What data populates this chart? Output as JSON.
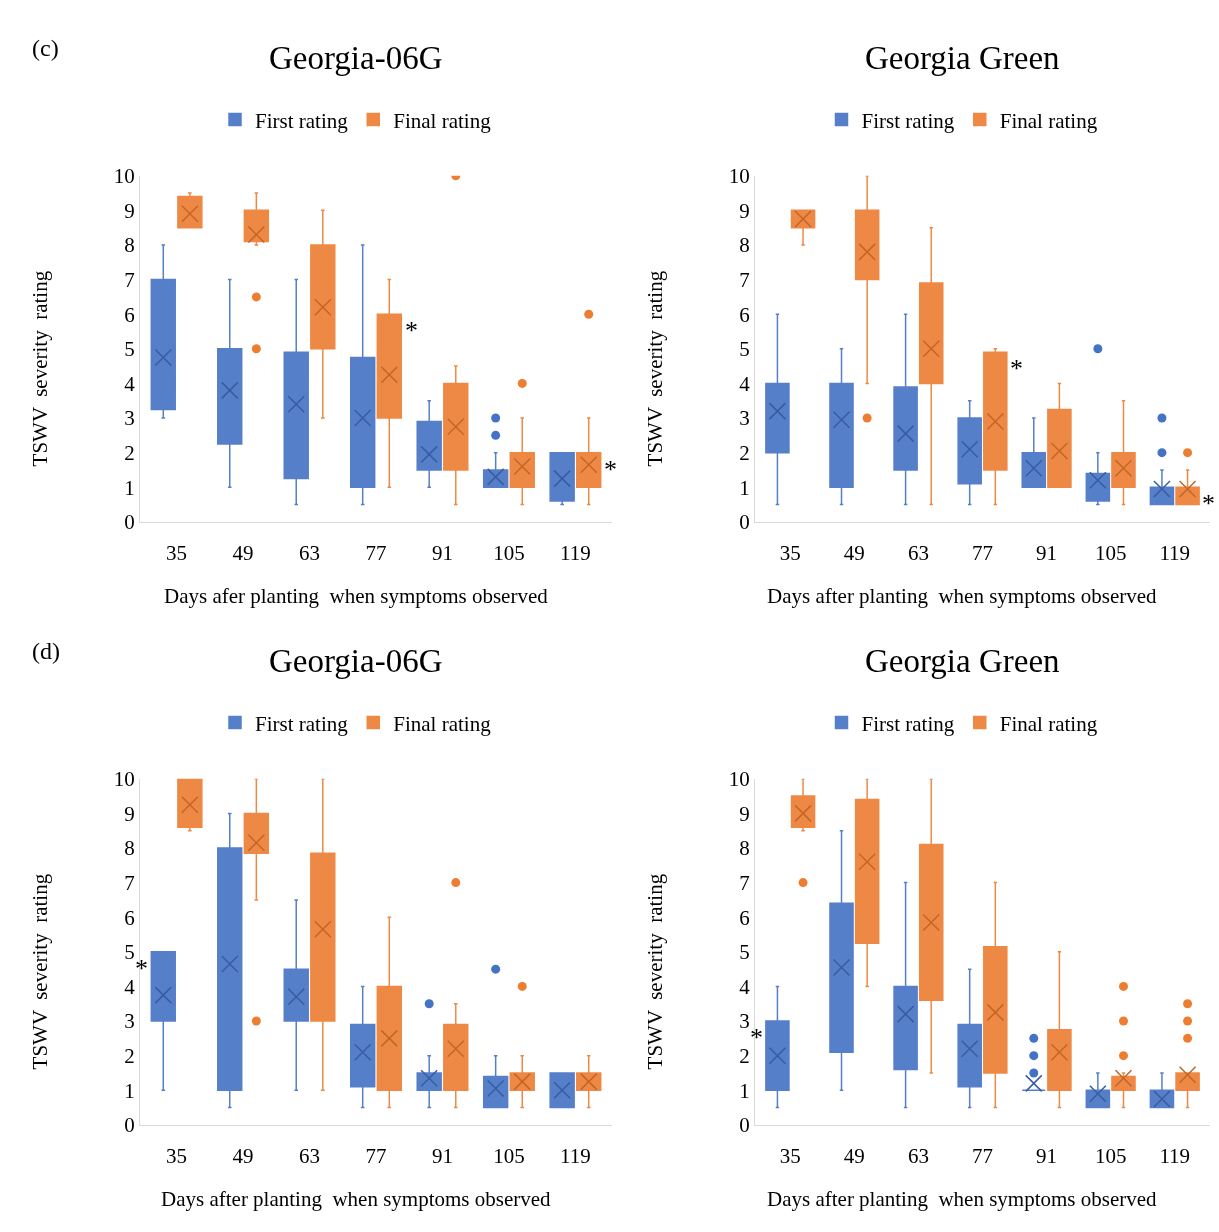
{
  "chart_data": [
    {
      "type": "box",
      "title": "Georgia-06G",
      "xlabel": "Days afer planting  when symptoms observed",
      "ylabel": "TSWV  severity  rating",
      "categories": [
        "35",
        "49",
        "63",
        "77",
        "91",
        "105",
        "119"
      ],
      "ylim": [
        0,
        10
      ],
      "yticks": [
        0,
        1,
        2,
        3,
        4,
        5,
        6,
        7,
        8,
        9,
        10
      ],
      "grid": false,
      "legend": "top",
      "marker": "circle",
      "annotations": [
        "(c)",
        {
          "text": "*",
          "x": "77",
          "y": 6
        },
        {
          "text": "*",
          "x": "119",
          "y": 2
        }
      ],
      "series": [
        {
          "name": "First rating",
          "color": "#4472c4",
          "boxes": [
            {
              "low": 3,
              "q1": 3.25,
              "median": 4,
              "q3": 7,
              "high": 8,
              "mean": 4.75
            },
            {
              "low": 1,
              "q1": 2.25,
              "median": 4,
              "q3": 5,
              "high": 7,
              "mean": 3.8
            },
            {
              "low": 0.5,
              "q1": 1.25,
              "median": 4,
              "q3": 4.9,
              "high": 7,
              "mean": 3.4
            },
            {
              "low": 0.5,
              "q1": 1,
              "median": 2.25,
              "q3": 4.75,
              "high": 8,
              "mean": 3.0
            },
            {
              "low": 1,
              "q1": 1.5,
              "median": 1.75,
              "q3": 2.9,
              "high": 3.5,
              "mean": 1.95
            },
            {
              "low": 1,
              "q1": 1,
              "median": 1,
              "q3": 1.5,
              "high": 2,
              "mean": 1.3,
              "outliers": [
                2.5,
                3
              ]
            },
            {
              "low": 0.5,
              "q1": 0.6,
              "median": 1,
              "q3": 2,
              "high": 2,
              "mean": 1.25
            }
          ]
        },
        {
          "name": "Final rating",
          "color": "#ed7d31",
          "boxes": [
            {
              "low": 8.5,
              "q1": 8.5,
              "median": 8.75,
              "q3": 9.4,
              "high": 9.5,
              "mean": 8.9
            },
            {
              "low": 8,
              "q1": 8.1,
              "median": 8.1,
              "q3": 9,
              "high": 9.5,
              "mean": 8.3,
              "outliers": [
                5,
                6.5
              ]
            },
            {
              "low": 3,
              "q1": 5,
              "median": 6,
              "q3": 8,
              "high": 9,
              "mean": 6.2
            },
            {
              "low": 1,
              "q1": 3,
              "median": 4,
              "q3": 6,
              "high": 7,
              "mean": 4.25
            },
            {
              "low": 0.5,
              "q1": 1.5,
              "median": 2.25,
              "q3": 4,
              "high": 4.5,
              "mean": 2.75,
              "outliers": [
                10
              ]
            },
            {
              "low": 0.5,
              "q1": 1,
              "median": 1.5,
              "q3": 2,
              "high": 3,
              "mean": 1.6,
              "outliers": [
                4
              ]
            },
            {
              "low": 0.5,
              "q1": 1,
              "median": 1.5,
              "q3": 2,
              "high": 3,
              "mean": 1.65,
              "outliers": [
                6
              ]
            }
          ]
        }
      ]
    },
    {
      "type": "box",
      "title": "Georgia Green",
      "xlabel": "Days after planting  when symptoms observed",
      "ylabel": "TSWV  severity  rating",
      "categories": [
        "35",
        "49",
        "63",
        "77",
        "91",
        "105",
        "119"
      ],
      "ylim": [
        0,
        10
      ],
      "yticks": [
        0,
        1,
        2,
        3,
        4,
        5,
        6,
        7,
        8,
        9,
        10
      ],
      "grid": false,
      "legend": "top",
      "marker": "circle",
      "annotations": [
        {
          "text": "*",
          "x": "77",
          "y": 4.9
        },
        {
          "text": "*",
          "x": "119",
          "y": 1
        }
      ],
      "series": [
        {
          "name": "First rating",
          "color": "#4472c4",
          "boxes": [
            {
              "low": 0.5,
              "q1": 2,
              "median": 3,
              "q3": 4,
              "high": 6,
              "mean": 3.2
            },
            {
              "low": 0.5,
              "q1": 1,
              "median": 3,
              "q3": 4,
              "high": 5,
              "mean": 2.95
            },
            {
              "low": 0.5,
              "q1": 1.5,
              "median": 2.25,
              "q3": 3.9,
              "high": 6,
              "mean": 2.55
            },
            {
              "low": 0.5,
              "q1": 1.1,
              "median": 2,
              "q3": 3,
              "high": 3.5,
              "mean": 2.1
            },
            {
              "low": 1,
              "q1": 1,
              "median": 1.5,
              "q3": 2,
              "high": 3,
              "mean": 1.55
            },
            {
              "low": 0.5,
              "q1": 0.6,
              "median": 1,
              "q3": 1.4,
              "high": 2,
              "mean": 1.2,
              "outliers": [
                5
              ]
            },
            {
              "low": 0.5,
              "q1": 0.5,
              "median": 0.75,
              "q3": 1,
              "high": 1.5,
              "mean": 0.95,
              "outliers": [
                2,
                3
              ]
            }
          ]
        },
        {
          "name": "Final rating",
          "color": "#ed7d31",
          "boxes": [
            {
              "low": 8,
              "q1": 8.5,
              "median": 8.75,
              "q3": 9,
              "high": 9,
              "mean": 8.75
            },
            {
              "low": 4,
              "q1": 7,
              "median": 8.5,
              "q3": 9,
              "high": 10,
              "mean": 7.8,
              "outliers": [
                3
              ]
            },
            {
              "low": 0.5,
              "q1": 4,
              "median": 5,
              "q3": 6.9,
              "high": 8.5,
              "mean": 5
            },
            {
              "low": 0.5,
              "q1": 1.5,
              "median": 2.5,
              "q3": 4.9,
              "high": 5,
              "mean": 2.9
            },
            {
              "low": 1,
              "q1": 1,
              "median": 1.5,
              "q3": 3.25,
              "high": 4,
              "mean": 2.05
            },
            {
              "low": 0.5,
              "q1": 1,
              "median": 1.25,
              "q3": 2,
              "high": 3.5,
              "mean": 1.55
            },
            {
              "low": 0.5,
              "q1": 0.5,
              "median": 0.75,
              "q3": 1,
              "high": 1.5,
              "mean": 0.95,
              "outliers": [
                2
              ]
            }
          ]
        }
      ]
    },
    {
      "type": "box",
      "title": "Georgia-06G",
      "xlabel": "Days after planting  when symptoms observed",
      "ylabel": "TSWV  severity  rating",
      "categories": [
        "35",
        "49",
        "63",
        "77",
        "91",
        "105",
        "119"
      ],
      "ylim": [
        0,
        10
      ],
      "yticks": [
        0,
        1,
        2,
        3,
        4,
        5,
        6,
        7,
        8,
        9,
        10
      ],
      "grid": false,
      "legend": "top",
      "marker": "circle",
      "annotations": [
        "(d)",
        {
          "text": "*",
          "x": "35",
          "y": 5
        }
      ],
      "series": [
        {
          "name": "First rating",
          "color": "#4472c4",
          "boxes": [
            {
              "low": 1,
              "q1": 3,
              "median": 4,
              "q3": 5,
              "high": 5,
              "mean": 3.75
            },
            {
              "low": 0.5,
              "q1": 1,
              "median": 5,
              "q3": 8,
              "high": 9,
              "mean": 4.65
            },
            {
              "low": 1,
              "q1": 3,
              "median": 3.5,
              "q3": 4.5,
              "high": 6.5,
              "mean": 3.7
            },
            {
              "low": 0.5,
              "q1": 1.1,
              "median": 2,
              "q3": 2.9,
              "high": 4,
              "mean": 2.1
            },
            {
              "low": 0.5,
              "q1": 1,
              "median": 1.25,
              "q3": 1.5,
              "high": 2,
              "mean": 1.35,
              "outliers": [
                3.5
              ]
            },
            {
              "low": 0.5,
              "q1": 0.5,
              "median": 1,
              "q3": 1.4,
              "high": 2,
              "mean": 1.05,
              "outliers": [
                4.5
              ]
            },
            {
              "low": 0.5,
              "q1": 0.5,
              "median": 1,
              "q3": 1.5,
              "high": 1.5,
              "mean": 1.0
            }
          ]
        },
        {
          "name": "Final rating",
          "color": "#ed7d31",
          "boxes": [
            {
              "low": 8.5,
              "q1": 8.6,
              "median": 9,
              "q3": 10,
              "high": 10,
              "mean": 9.25
            },
            {
              "low": 6.5,
              "q1": 7.85,
              "median": 8.75,
              "q3": 9,
              "high": 10,
              "mean": 8.15,
              "outliers": [
                3
              ]
            },
            {
              "low": 1,
              "q1": 3,
              "median": 5.7,
              "q3": 7.85,
              "high": 10,
              "mean": 5.65
            },
            {
              "low": 0.5,
              "q1": 1,
              "median": 2,
              "q3": 4,
              "high": 6,
              "mean": 2.5
            },
            {
              "low": 0.5,
              "q1": 1,
              "median": 1.75,
              "q3": 2.9,
              "high": 3.5,
              "mean": 2.2,
              "outliers": [
                7
              ]
            },
            {
              "low": 0.5,
              "q1": 1,
              "median": 1.25,
              "q3": 1.5,
              "high": 2,
              "mean": 1.25,
              "outliers": [
                4
              ]
            },
            {
              "low": 0.5,
              "q1": 1,
              "median": 1.25,
              "q3": 1.5,
              "high": 2,
              "mean": 1.25
            }
          ]
        }
      ]
    },
    {
      "type": "box",
      "title": "Georgia Green",
      "xlabel": "Days after planting  when symptoms observed",
      "ylabel": "TSWV  severity  rating",
      "categories": [
        "35",
        "49",
        "63",
        "77",
        "91",
        "105",
        "119"
      ],
      "ylim": [
        0,
        10
      ],
      "yticks": [
        0,
        1,
        2,
        3,
        4,
        5,
        6,
        7,
        8,
        9,
        10
      ],
      "grid": false,
      "legend": "top",
      "marker": "circle",
      "annotations": [
        {
          "text": "*",
          "x": "35",
          "y": 3
        }
      ],
      "series": [
        {
          "name": "First rating",
          "color": "#4472c4",
          "boxes": [
            {
              "low": 0.5,
              "q1": 1,
              "median": 1.25,
              "q3": 3,
              "high": 4,
              "mean": 2
            },
            {
              "low": 1,
              "q1": 2.1,
              "median": 5,
              "q3": 6.4,
              "high": 8.5,
              "mean": 4.55
            },
            {
              "low": 0.5,
              "q1": 1.6,
              "median": 3.1,
              "q3": 4,
              "high": 7,
              "mean": 3.2
            },
            {
              "low": 0.5,
              "q1": 1.1,
              "median": 2,
              "q3": 2.9,
              "high": 4.5,
              "mean": 2.2
            },
            {
              "low": 1,
              "q1": 1,
              "median": 1,
              "q3": 1,
              "high": 1,
              "mean": 1.2,
              "outliers": [
                1.5,
                2,
                2.5
              ]
            },
            {
              "low": 0.5,
              "q1": 0.5,
              "median": 0.75,
              "q3": 1,
              "high": 1.5,
              "mean": 0.9
            },
            {
              "low": 0.5,
              "q1": 0.5,
              "median": 0.75,
              "q3": 1,
              "high": 1.5,
              "mean": 0.75
            }
          ]
        },
        {
          "name": "Final rating",
          "color": "#ed7d31",
          "boxes": [
            {
              "low": 8.5,
              "q1": 8.6,
              "median": 9,
              "q3": 9.5,
              "high": 10,
              "mean": 9,
              "outliers": [
                7
              ]
            },
            {
              "low": 4,
              "q1": 5.25,
              "median": 8.5,
              "q3": 9.4,
              "high": 10,
              "mean": 7.6
            },
            {
              "low": 1.5,
              "q1": 3.6,
              "median": 6,
              "q3": 8.1,
              "high": 10,
              "mean": 5.85
            },
            {
              "low": 0.5,
              "q1": 1.5,
              "median": 2.5,
              "q3": 5.15,
              "high": 7,
              "mean": 3.25
            },
            {
              "low": 0.5,
              "q1": 1,
              "median": 1.5,
              "q3": 2.75,
              "high": 5,
              "mean": 2.1
            },
            {
              "low": 0.5,
              "q1": 1,
              "median": 1.25,
              "q3": 1.4,
              "high": 1.5,
              "mean": 1.35,
              "outliers": [
                2,
                3,
                4
              ]
            },
            {
              "low": 0.5,
              "q1": 1,
              "median": 1.25,
              "q3": 1.5,
              "high": 1.5,
              "mean": 1.45,
              "outliers": [
                2.5,
                3,
                3.5
              ]
            }
          ]
        }
      ]
    }
  ]
}
